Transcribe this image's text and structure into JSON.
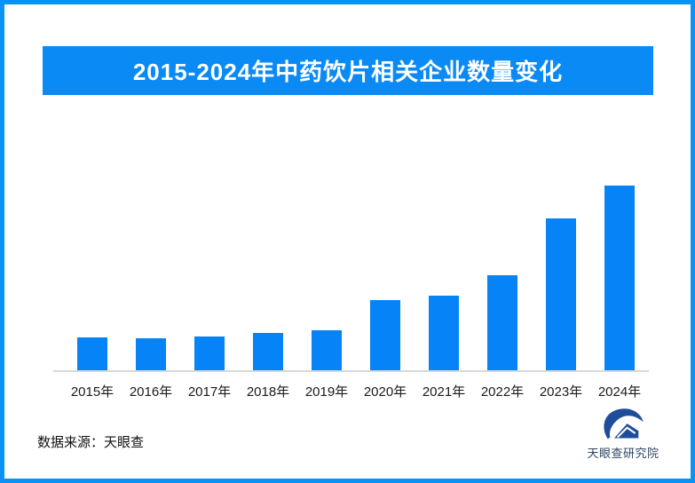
{
  "frame": {
    "border_color": "#0a93f7",
    "background": "#ffffff"
  },
  "banner": {
    "text": "2015-2024年中药饮片相关企业数量变化",
    "background": "#0a8af5",
    "text_color": "#ffffff"
  },
  "chart_data": {
    "type": "bar",
    "title": "2015-2024年中药饮片相关企业数量变化",
    "categories": [
      "2015年",
      "2016年",
      "2017年",
      "2018年",
      "2019年",
      "2020年",
      "2021年",
      "2022年",
      "2023年",
      "2024年"
    ],
    "values": [
      18,
      17.5,
      18.5,
      20.5,
      22,
      38.5,
      40.5,
      51.5,
      82.5,
      100
    ],
    "values_note": "图中无数值标签与y轴，数值为相对高度估计（2024年=100）",
    "bar_color": "#0583f7",
    "axis_line_color": "#d9d9d9",
    "xlabel": "",
    "ylabel": "",
    "ylim": [
      0,
      100
    ],
    "grid": false,
    "legend": false,
    "data_labels": false
  },
  "footer": {
    "source": "数据来源：天眼查",
    "brand": "天眼查研究院",
    "brand_text_color": "#2d4564",
    "logo_color": "#1f4d9b"
  }
}
